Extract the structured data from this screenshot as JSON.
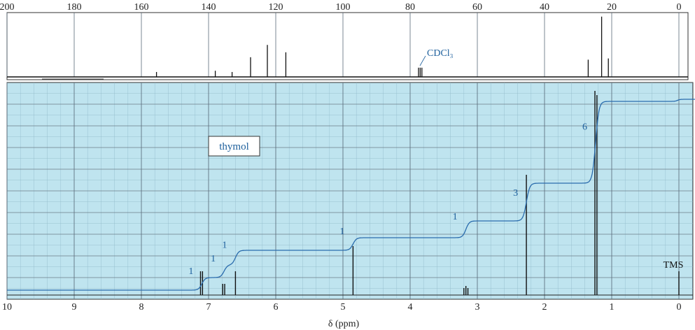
{
  "chart_data": [
    {
      "type": "line",
      "title": "",
      "xlabel": "",
      "xlim": [
        200,
        0
      ],
      "tick_labels": [
        "200",
        "180",
        "160",
        "140",
        "120",
        "100",
        "80",
        "60",
        "40",
        "20",
        "0"
      ],
      "peaks": [
        {
          "x": 155.5,
          "height": 0.08
        },
        {
          "x": 138.0,
          "height": 0.1
        },
        {
          "x": 133.0,
          "height": 0.08
        },
        {
          "x": 127.5,
          "height": 0.32
        },
        {
          "x": 122.5,
          "height": 0.52
        },
        {
          "x": 117.0,
          "height": 0.4
        },
        {
          "x": 77.5,
          "height": 0.15
        },
        {
          "x": 77.0,
          "height": 0.15
        },
        {
          "x": 76.5,
          "height": 0.15
        },
        {
          "x": 27.0,
          "height": 0.28
        },
        {
          "x": 23.0,
          "height": 0.98
        },
        {
          "x": 21.0,
          "height": 0.3
        }
      ],
      "annotation": "CDCl₃",
      "annotation_x": 77.5
    },
    {
      "type": "line",
      "title": "",
      "xlabel": "δ (ppm)",
      "xlim": [
        10,
        0
      ],
      "tick_labels": [
        "10",
        "9",
        "8",
        "7",
        "6",
        "5",
        "4",
        "3",
        "2",
        "1",
        "0"
      ],
      "compound_label": "thymol",
      "peaks": [
        {
          "x": 7.12,
          "height": 0.12
        },
        {
          "x": 7.09,
          "height": 0.12
        },
        {
          "x": 6.79,
          "height": 0.06
        },
        {
          "x": 6.76,
          "height": 0.06
        },
        {
          "x": 6.6,
          "height": 0.12
        },
        {
          "x": 4.85,
          "height": 0.24
        },
        {
          "x": 3.2,
          "height": 0.04
        },
        {
          "x": 3.17,
          "height": 0.05
        },
        {
          "x": 3.14,
          "height": 0.04
        },
        {
          "x": 2.27,
          "height": 0.58
        },
        {
          "x": 1.25,
          "height": 0.98
        },
        {
          "x": 1.22,
          "height": 0.96
        },
        {
          "x": 0.0,
          "height": 0.12
        }
      ],
      "integration_steps": [
        {
          "x": 7.1,
          "label": "1",
          "from": 0.03,
          "to": 0.09
        },
        {
          "x": 6.77,
          "label": "1",
          "from": 0.09,
          "to": 0.15
        },
        {
          "x": 6.6,
          "label": "1",
          "from": 0.15,
          "to": 0.22
        },
        {
          "x": 4.85,
          "label": "1",
          "from": 0.22,
          "to": 0.28
        },
        {
          "x": 3.17,
          "label": "1",
          "from": 0.28,
          "to": 0.36
        },
        {
          "x": 2.27,
          "label": "3",
          "from": 0.37,
          "to": 0.55
        },
        {
          "x": 1.24,
          "label": "6",
          "from": 0.58,
          "to": 0.97
        }
      ],
      "reference_label": "TMS",
      "reference_x": 0.0
    }
  ],
  "colors": {
    "panel_fill": "#bfe4ef",
    "grid": "#5a6a78",
    "integration": "#2a6cad",
    "spectrum": "#111111",
    "label_text": "#1d5f9c"
  }
}
